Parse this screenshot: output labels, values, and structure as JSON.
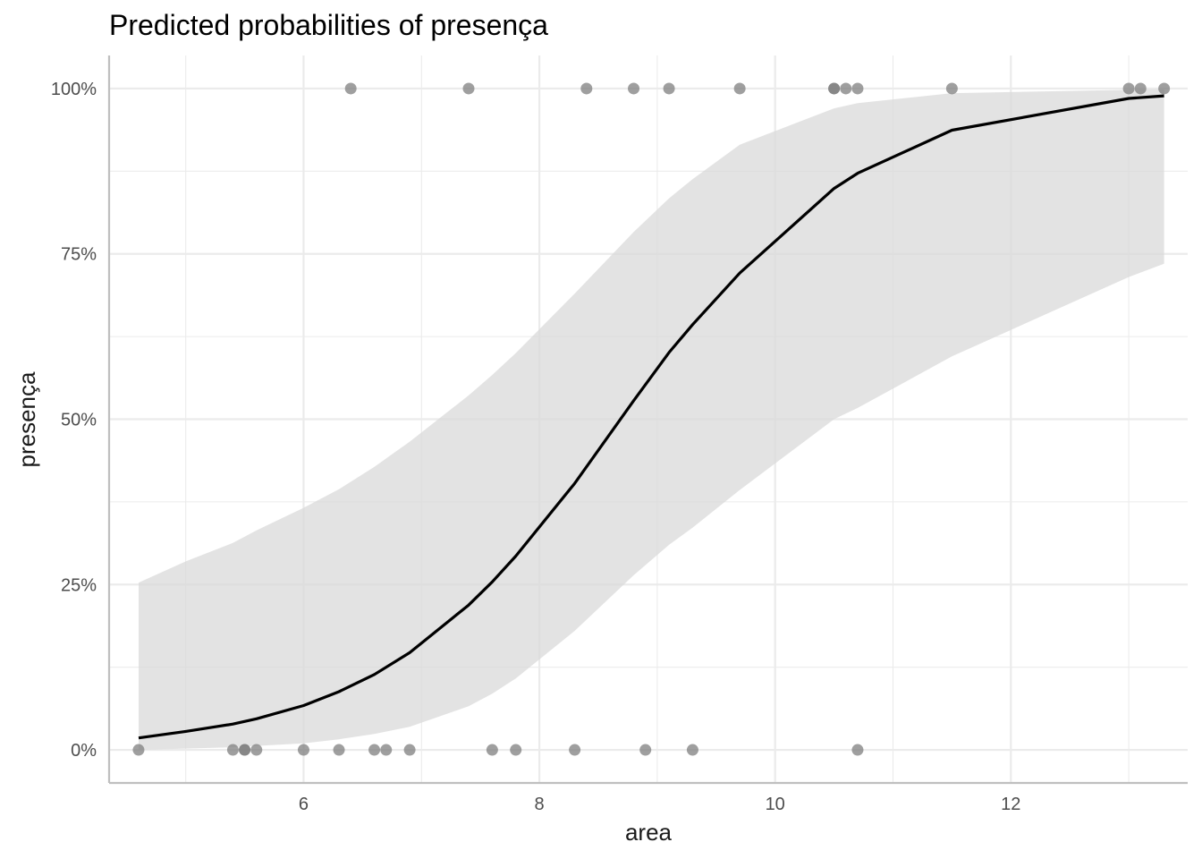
{
  "chart_data": {
    "type": "line",
    "title": "Predicted probabilities of presença",
    "xlabel": "area",
    "ylabel": "presença",
    "xlim": [
      4.35,
      13.5
    ],
    "ylim": [
      -0.05,
      1.05
    ],
    "x_ticks": [
      6,
      8,
      10,
      12
    ],
    "x_tick_labels": [
      "6",
      "8",
      "10",
      "12"
    ],
    "y_ticks": [
      0,
      0.25,
      0.5,
      0.75,
      1
    ],
    "y_tick_labels": [
      "0%",
      "25%",
      "50%",
      "75%",
      "100%"
    ],
    "grid": true,
    "legend": "none",
    "series": [
      {
        "role": "predicted",
        "x": [
          4.6,
          5.0,
          5.4,
          5.6,
          6.0,
          6.3,
          6.6,
          6.9,
          7.4,
          7.6,
          7.8,
          8.3,
          8.8,
          9.1,
          9.3,
          9.7,
          10.5,
          10.7,
          11.5,
          13.0,
          13.3
        ],
        "y": [
          0.018,
          0.028,
          0.039,
          0.047,
          0.067,
          0.088,
          0.114,
          0.147,
          0.219,
          0.254,
          0.293,
          0.403,
          0.528,
          0.601,
          0.643,
          0.721,
          0.849,
          0.872,
          0.937,
          0.985,
          0.989
        ]
      },
      {
        "role": "ci_lower",
        "x": [
          4.6,
          5.0,
          5.4,
          5.6,
          6.0,
          6.3,
          6.6,
          6.9,
          7.4,
          7.6,
          7.8,
          8.3,
          8.8,
          9.1,
          9.3,
          9.7,
          10.5,
          10.7,
          11.5,
          13.0,
          13.3
        ],
        "y": [
          0.0,
          0.002,
          0.004,
          0.006,
          0.01,
          0.016,
          0.024,
          0.035,
          0.066,
          0.085,
          0.108,
          0.18,
          0.264,
          0.31,
          0.336,
          0.393,
          0.5,
          0.517,
          0.595,
          0.715,
          0.735
        ]
      },
      {
        "role": "ci_upper",
        "x": [
          4.6,
          5.0,
          5.4,
          5.6,
          6.0,
          6.3,
          6.6,
          6.9,
          7.4,
          7.6,
          7.8,
          8.3,
          8.8,
          9.1,
          9.3,
          9.7,
          10.5,
          10.7,
          11.5,
          13.0,
          13.3
        ],
        "y": [
          0.253,
          0.285,
          0.313,
          0.332,
          0.366,
          0.394,
          0.428,
          0.466,
          0.536,
          0.567,
          0.6,
          0.69,
          0.783,
          0.834,
          0.863,
          0.915,
          0.97,
          0.978,
          0.993,
          0.998,
          0.999
        ]
      }
    ],
    "observations": {
      "x": [
        4.6,
        5.4,
        5.5,
        5.5,
        5.6,
        6.0,
        6.3,
        6.6,
        6.7,
        6.9,
        7.6,
        7.8,
        8.3,
        8.9,
        9.3,
        10.7,
        6.4,
        7.4,
        8.4,
        8.8,
        9.1,
        9.7,
        10.5,
        10.5,
        10.6,
        10.7,
        11.5,
        13.0,
        13.1,
        13.3
      ],
      "y": [
        0,
        0,
        0,
        0,
        0,
        0,
        0,
        0,
        0,
        0,
        0,
        0,
        0,
        0,
        0,
        0,
        1,
        1,
        1,
        1,
        1,
        1,
        1,
        1,
        1,
        1,
        1,
        1,
        1,
        1
      ]
    },
    "colors": {
      "line": "#000000",
      "ribbon": "#d9d9d9",
      "points": "#7f7f7f",
      "grid": "#ebebeb",
      "axis": "#bfbfbf"
    }
  }
}
